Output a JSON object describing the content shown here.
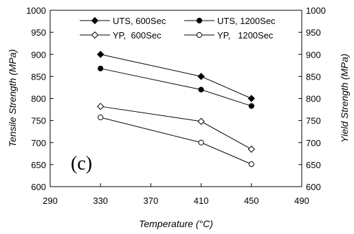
{
  "chart_data": {
    "type": "line",
    "xlabel": "Temperature (°C)",
    "ylabel_left": "Tensile Strength (MPa)",
    "ylabel_right": "Yield Strength (MPa)",
    "xlim": [
      290,
      490
    ],
    "ylim": [
      600,
      1000
    ],
    "x_ticks": [
      290,
      330,
      370,
      410,
      450,
      490
    ],
    "y_ticks": [
      600,
      650,
      700,
      750,
      800,
      850,
      900,
      950,
      1000
    ],
    "grid": false,
    "legend_position": "top",
    "panel_label": "(c)",
    "series": [
      {
        "name": "UTS, 600Sec",
        "marker": "filled-diamond",
        "x": [
          330,
          410,
          450
        ],
        "y": [
          900,
          850,
          800
        ]
      },
      {
        "name": "UTS, 1200Sec",
        "marker": "filled-circle",
        "x": [
          330,
          410,
          450
        ],
        "y": [
          868,
          820,
          783
        ]
      },
      {
        "name": "YP,  600Sec",
        "marker": "open-diamond",
        "x": [
          330,
          410,
          450
        ],
        "y": [
          782,
          748,
          685
        ]
      },
      {
        "name": "YP,   1200Sec",
        "marker": "open-circle",
        "x": [
          330,
          410,
          450
        ],
        "y": [
          757,
          700,
          651
        ]
      }
    ]
  }
}
